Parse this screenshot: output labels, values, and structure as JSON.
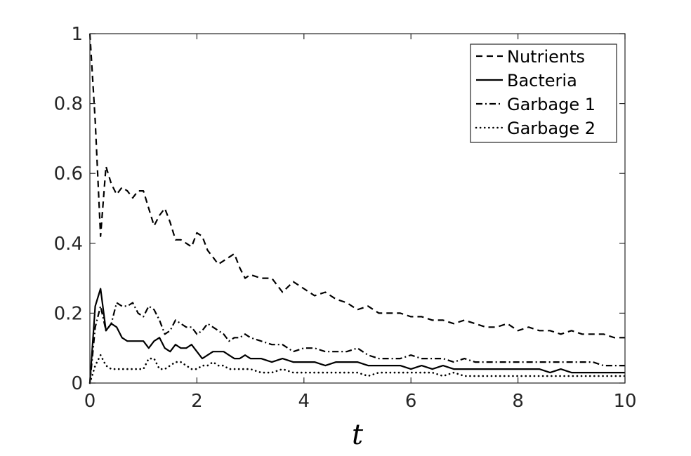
{
  "chart_data": {
    "type": "line",
    "title": "",
    "xlabel": "t",
    "ylabel": "",
    "xlim": [
      0,
      10
    ],
    "ylim": [
      0,
      1
    ],
    "xticks": [
      "0",
      "2",
      "4",
      "6",
      "8",
      "10"
    ],
    "yticks": [
      "0",
      "0.2",
      "0.4",
      "0.6",
      "0.8",
      "1"
    ],
    "grid": false,
    "legend_position": "top-right",
    "series": [
      {
        "name": "Nutrients",
        "style": "dashed",
        "x": [
          0,
          0.1,
          0.2,
          0.3,
          0.4,
          0.5,
          0.6,
          0.7,
          0.8,
          0.9,
          1.0,
          1.1,
          1.2,
          1.3,
          1.4,
          1.5,
          1.6,
          1.7,
          1.8,
          1.9,
          2.0,
          2.1,
          2.2,
          2.3,
          2.4,
          2.5,
          2.6,
          2.7,
          2.8,
          2.9,
          3.0,
          3.2,
          3.4,
          3.6,
          3.8,
          4.0,
          4.2,
          4.4,
          4.6,
          4.8,
          5.0,
          5.2,
          5.4,
          5.6,
          5.8,
          6.0,
          6.2,
          6.4,
          6.6,
          6.8,
          7.0,
          7.2,
          7.4,
          7.6,
          7.8,
          8.0,
          8.2,
          8.4,
          8.6,
          8.8,
          9.0,
          9.2,
          9.4,
          9.6,
          9.8,
          10.0
        ],
        "values": [
          1.0,
          0.75,
          0.42,
          0.62,
          0.57,
          0.54,
          0.56,
          0.55,
          0.53,
          0.55,
          0.55,
          0.5,
          0.45,
          0.48,
          0.5,
          0.46,
          0.41,
          0.41,
          0.4,
          0.39,
          0.43,
          0.42,
          0.38,
          0.36,
          0.34,
          0.35,
          0.36,
          0.37,
          0.33,
          0.3,
          0.31,
          0.3,
          0.3,
          0.26,
          0.29,
          0.27,
          0.25,
          0.26,
          0.24,
          0.23,
          0.21,
          0.22,
          0.2,
          0.2,
          0.2,
          0.19,
          0.19,
          0.18,
          0.18,
          0.17,
          0.18,
          0.17,
          0.16,
          0.16,
          0.17,
          0.15,
          0.16,
          0.15,
          0.15,
          0.14,
          0.15,
          0.14,
          0.14,
          0.14,
          0.13,
          0.13
        ]
      },
      {
        "name": "Bacteria",
        "style": "solid",
        "x": [
          0,
          0.1,
          0.2,
          0.3,
          0.4,
          0.5,
          0.6,
          0.7,
          0.8,
          0.9,
          1.0,
          1.1,
          1.2,
          1.3,
          1.4,
          1.5,
          1.6,
          1.7,
          1.8,
          1.9,
          2.0,
          2.1,
          2.2,
          2.3,
          2.4,
          2.5,
          2.6,
          2.7,
          2.8,
          2.9,
          3.0,
          3.2,
          3.4,
          3.6,
          3.8,
          4.0,
          4.2,
          4.4,
          4.6,
          4.8,
          5.0,
          5.2,
          5.4,
          5.6,
          5.8,
          6.0,
          6.2,
          6.4,
          6.6,
          6.8,
          7.0,
          7.2,
          7.4,
          7.6,
          7.8,
          8.0,
          8.2,
          8.4,
          8.6,
          8.8,
          9.0,
          9.2,
          9.4,
          9.6,
          9.8,
          10.0
        ],
        "values": [
          0.0,
          0.22,
          0.27,
          0.15,
          0.17,
          0.16,
          0.13,
          0.12,
          0.12,
          0.12,
          0.12,
          0.1,
          0.12,
          0.13,
          0.1,
          0.09,
          0.11,
          0.1,
          0.1,
          0.11,
          0.09,
          0.07,
          0.08,
          0.09,
          0.09,
          0.09,
          0.08,
          0.07,
          0.07,
          0.08,
          0.07,
          0.07,
          0.06,
          0.07,
          0.06,
          0.06,
          0.06,
          0.05,
          0.06,
          0.06,
          0.06,
          0.05,
          0.05,
          0.05,
          0.05,
          0.04,
          0.05,
          0.04,
          0.05,
          0.04,
          0.04,
          0.04,
          0.04,
          0.04,
          0.04,
          0.04,
          0.04,
          0.04,
          0.03,
          0.04,
          0.03,
          0.03,
          0.03,
          0.03,
          0.03,
          0.03
        ]
      },
      {
        "name": "Garbage 1",
        "style": "dashdot",
        "x": [
          0,
          0.1,
          0.2,
          0.3,
          0.4,
          0.5,
          0.6,
          0.7,
          0.8,
          0.9,
          1.0,
          1.1,
          1.2,
          1.3,
          1.4,
          1.5,
          1.6,
          1.7,
          1.8,
          1.9,
          2.0,
          2.1,
          2.2,
          2.3,
          2.4,
          2.5,
          2.6,
          2.7,
          2.8,
          2.9,
          3.0,
          3.2,
          3.4,
          3.6,
          3.8,
          4.0,
          4.2,
          4.4,
          4.6,
          4.8,
          5.0,
          5.2,
          5.4,
          5.6,
          5.8,
          6.0,
          6.2,
          6.4,
          6.6,
          6.8,
          7.0,
          7.2,
          7.4,
          7.6,
          7.8,
          8.0,
          8.2,
          8.4,
          8.6,
          8.8,
          9.0,
          9.2,
          9.4,
          9.6,
          9.8,
          10.0
        ],
        "values": [
          0.0,
          0.16,
          0.22,
          0.15,
          0.17,
          0.23,
          0.22,
          0.22,
          0.23,
          0.2,
          0.19,
          0.22,
          0.21,
          0.18,
          0.14,
          0.15,
          0.18,
          0.17,
          0.16,
          0.16,
          0.14,
          0.15,
          0.17,
          0.16,
          0.15,
          0.14,
          0.12,
          0.13,
          0.13,
          0.14,
          0.13,
          0.12,
          0.11,
          0.11,
          0.09,
          0.1,
          0.1,
          0.09,
          0.09,
          0.09,
          0.1,
          0.08,
          0.07,
          0.07,
          0.07,
          0.08,
          0.07,
          0.07,
          0.07,
          0.06,
          0.07,
          0.06,
          0.06,
          0.06,
          0.06,
          0.06,
          0.06,
          0.06,
          0.06,
          0.06,
          0.06,
          0.06,
          0.06,
          0.05,
          0.05,
          0.05
        ]
      },
      {
        "name": "Garbage 2",
        "style": "dotted",
        "x": [
          0,
          0.1,
          0.2,
          0.3,
          0.4,
          0.5,
          0.6,
          0.7,
          0.8,
          0.9,
          1.0,
          1.1,
          1.2,
          1.3,
          1.4,
          1.5,
          1.6,
          1.7,
          1.8,
          1.9,
          2.0,
          2.1,
          2.2,
          2.3,
          2.4,
          2.5,
          2.6,
          2.7,
          2.8,
          2.9,
          3.0,
          3.2,
          3.4,
          3.6,
          3.8,
          4.0,
          4.2,
          4.4,
          4.6,
          4.8,
          5.0,
          5.2,
          5.4,
          5.6,
          5.8,
          6.0,
          6.2,
          6.4,
          6.6,
          6.8,
          7.0,
          7.2,
          7.4,
          7.6,
          7.8,
          8.0,
          8.2,
          8.4,
          8.6,
          8.8,
          9.0,
          9.2,
          9.4,
          9.6,
          9.8,
          10.0
        ],
        "values": [
          0.0,
          0.05,
          0.08,
          0.05,
          0.04,
          0.04,
          0.04,
          0.04,
          0.04,
          0.04,
          0.04,
          0.07,
          0.07,
          0.04,
          0.04,
          0.05,
          0.06,
          0.06,
          0.05,
          0.04,
          0.04,
          0.05,
          0.05,
          0.06,
          0.05,
          0.05,
          0.04,
          0.04,
          0.04,
          0.04,
          0.04,
          0.03,
          0.03,
          0.04,
          0.03,
          0.03,
          0.03,
          0.03,
          0.03,
          0.03,
          0.03,
          0.02,
          0.03,
          0.03,
          0.03,
          0.03,
          0.03,
          0.03,
          0.02,
          0.03,
          0.02,
          0.02,
          0.02,
          0.02,
          0.02,
          0.02,
          0.02,
          0.02,
          0.02,
          0.02,
          0.02,
          0.02,
          0.02,
          0.02,
          0.02,
          0.02
        ]
      }
    ]
  }
}
